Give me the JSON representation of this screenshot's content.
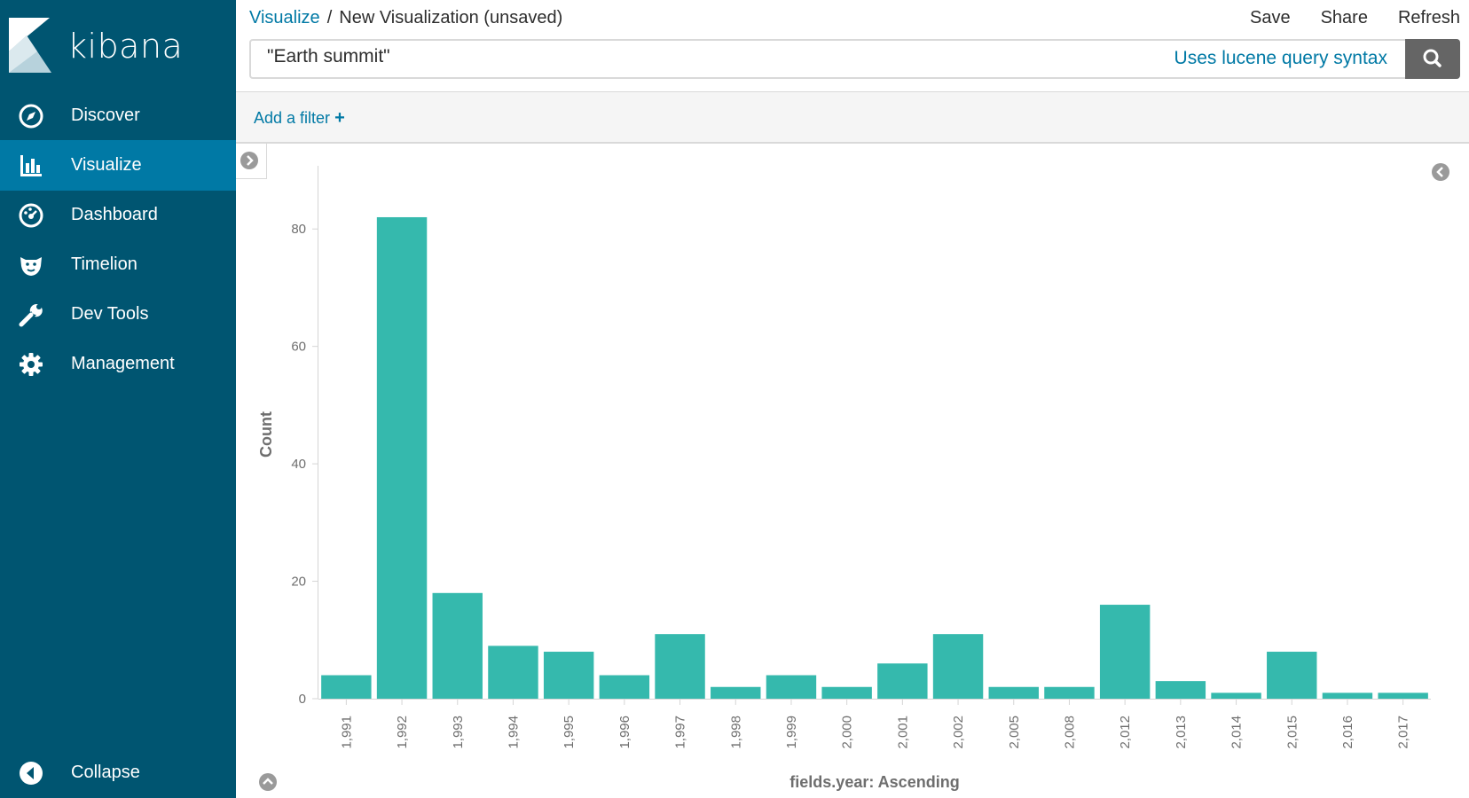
{
  "app": {
    "logo_text": "kibana"
  },
  "sidebar": {
    "items": [
      {
        "label": "Discover",
        "icon": "compass-icon"
      },
      {
        "label": "Visualize",
        "icon": "bar-chart-icon",
        "active": true
      },
      {
        "label": "Dashboard",
        "icon": "dashboard-gauge-icon"
      },
      {
        "label": "Timelion",
        "icon": "timelion-lion-icon"
      },
      {
        "label": "Dev Tools",
        "icon": "wrench-icon"
      },
      {
        "label": "Management",
        "icon": "gear-icon"
      }
    ],
    "collapse_label": "Collapse"
  },
  "header": {
    "breadcrumb_link": "Visualize",
    "breadcrumb_sep": "/",
    "breadcrumb_current": "New Visualization (unsaved)",
    "actions": {
      "save": "Save",
      "share": "Share",
      "refresh": "Refresh"
    }
  },
  "query": {
    "value": "\"Earth summit\"",
    "syntax_link": "Uses lucene query syntax"
  },
  "filter": {
    "add_label": "Add a filter",
    "add_icon": "plus-icon"
  },
  "colors": {
    "sidebar_bg": "#005571",
    "sidebar_active": "#0079a5",
    "bar": "#35b9ad",
    "link": "#0079a5"
  },
  "chart_data": {
    "type": "bar",
    "categories": [
      "1,991",
      "1,992",
      "1,993",
      "1,994",
      "1,995",
      "1,996",
      "1,997",
      "1,998",
      "1,999",
      "2,000",
      "2,001",
      "2,002",
      "2,005",
      "2,008",
      "2,012",
      "2,013",
      "2,014",
      "2,015",
      "2,016",
      "2,017"
    ],
    "values": [
      4,
      82,
      18,
      9,
      8,
      4,
      11,
      2,
      4,
      2,
      6,
      11,
      2,
      2,
      16,
      3,
      1,
      8,
      1,
      1
    ],
    "ylabel": "Count",
    "xlabel": "fields.year: Ascending",
    "ylim": [
      0,
      90
    ],
    "yticks": [
      0,
      20,
      40,
      60,
      80
    ],
    "grid": false,
    "legend": "none"
  }
}
